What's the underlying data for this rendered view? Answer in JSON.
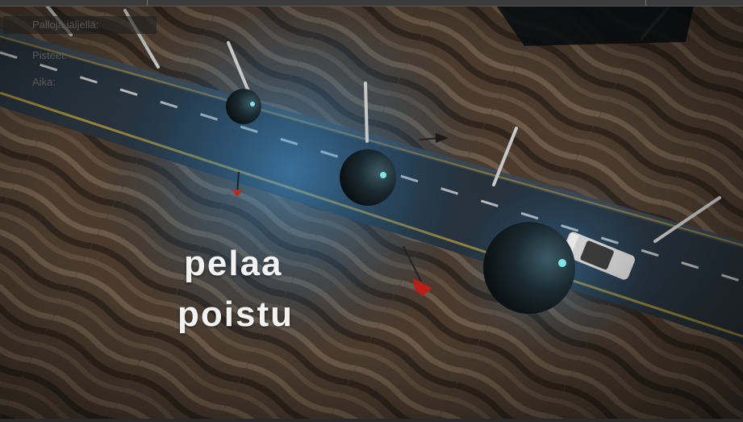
{
  "hud": {
    "balls_left_label": "Palloja jäljellä:",
    "score_label": "Pisteet:",
    "time_label": "Aika:"
  },
  "menu": {
    "play_label": "pelaa",
    "quit_label": "poistu"
  },
  "colors": {
    "sand": "#4a3a2c",
    "road": "#2e3a44",
    "light": "#3f8fd0",
    "ball": "#1b2a2e",
    "dart": "#b0281e"
  }
}
